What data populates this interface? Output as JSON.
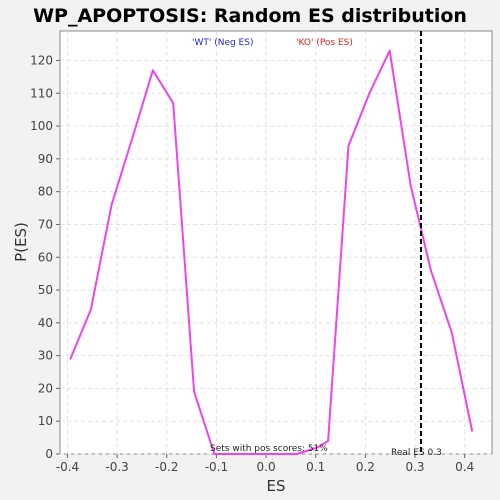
{
  "chart_data": {
    "type": "line",
    "title": "WP_APOPTOSIS: Random ES distribution",
    "xlabel": "ES",
    "ylabel": "P(ES)",
    "xlim": [
      -0.415,
      0.455
    ],
    "ylim": [
      0,
      129
    ],
    "xticks": [
      "-0.4",
      "-0.3",
      "-0.2",
      "-0.1",
      "0.0",
      "0.1",
      "0.2",
      "0.3",
      "0.4"
    ],
    "xtick_values": [
      -0.4,
      -0.3,
      -0.2,
      -0.1,
      0.0,
      0.1,
      0.2,
      0.3,
      0.4
    ],
    "yticks": [
      "0",
      "10",
      "20",
      "30",
      "40",
      "50",
      "60",
      "70",
      "80",
      "90",
      "100",
      "110",
      "120"
    ],
    "ytick_values": [
      0,
      10,
      20,
      30,
      40,
      50,
      60,
      70,
      80,
      90,
      100,
      110,
      120
    ],
    "grid": true,
    "legend": [
      {
        "label": "'WT' (Neg ES)",
        "color": "#2222dd"
      },
      {
        "label": "'KO' (Pos ES)",
        "color": "#dd2222"
      }
    ],
    "series": [
      {
        "color": "#ee44ee",
        "x": [
          -0.394,
          -0.353,
          -0.311,
          -0.27,
          -0.228,
          -0.187,
          -0.145,
          -0.104,
          -0.062,
          -0.021,
          0.021,
          0.062,
          0.104,
          0.125,
          0.166,
          0.208,
          0.249,
          0.291,
          0.332,
          0.374,
          0.415
        ],
        "y": [
          29,
          44,
          76,
          96,
          117,
          107,
          19,
          0,
          0,
          0,
          0,
          0,
          2,
          4,
          94,
          110,
          123,
          82,
          56,
          37,
          7
        ]
      }
    ],
    "annotations": {
      "real_es_value": 0.312,
      "real_es_color": "#000000",
      "real_es_label": "Real ES 0.3",
      "pos_scores_label": "Sets with pos scores: 51%"
    }
  }
}
